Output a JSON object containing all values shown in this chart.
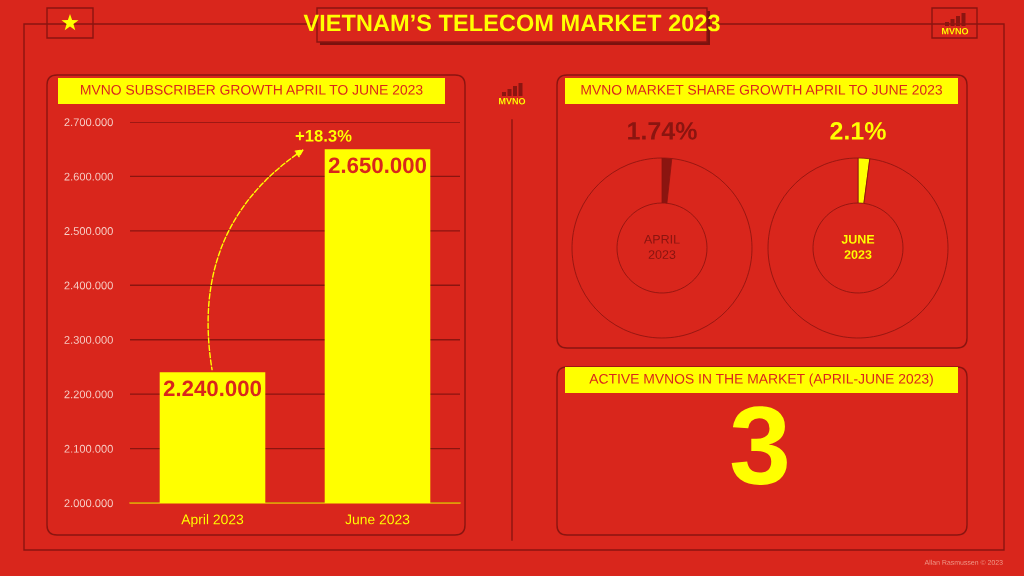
{
  "chart_data": [
    {
      "type": "other",
      "title": "VIETNAM’S TELECOM MARKET 2023",
      "annotations": [
        "MVNO",
        "MVNO",
        "Allan Rasmussen © 2023"
      ]
    },
    {
      "type": "bar",
      "title": "MVNO SUBSCRIBER GROWTH APRIL TO JUNE 2023",
      "categories": [
        "April 2023",
        "June 2023"
      ],
      "values": [
        2240000,
        2650000
      ],
      "value_labels": [
        "2.240.000",
        "2.650.000"
      ],
      "color": "#ffff00",
      "ylim": [
        2000000,
        2700000
      ],
      "yticks": [
        {
          "value": 2000000,
          "label": "2.000.000"
        },
        {
          "value": 2100000,
          "label": "2.100.000"
        },
        {
          "value": 2200000,
          "label": "2.200.000"
        },
        {
          "value": 2300000,
          "label": "2.300.000"
        },
        {
          "value": 2400000,
          "label": "2.400.000"
        },
        {
          "value": 2500000,
          "label": "2.500.000"
        },
        {
          "value": 2600000,
          "label": "2.600.000"
        },
        {
          "value": 2700000,
          "label": "2.700.000"
        }
      ],
      "grid": "y",
      "legend": false,
      "annotations": [
        "+18.3%"
      ]
    },
    {
      "type": "donut",
      "title": "MVNO MARKET SHARE GROWTH APRIL TO JUNE 2023",
      "categories": [
        null,
        null
      ],
      "values": [
        1.74,
        98.26
      ],
      "colors": [
        "#8b1510",
        "#d9261c"
      ],
      "value_labels": [
        "1.74%",
        null
      ],
      "annotations": [
        "APRIL\n2023"
      ],
      "legend": false
    },
    {
      "type": "donut",
      "categories": [
        null,
        null
      ],
      "values": [
        2.1,
        97.9
      ],
      "colors": [
        "#ffff00",
        "#d9261c"
      ],
      "value_labels": [
        "2.1%",
        null
      ],
      "annotations": [
        "JUNE\n2023"
      ],
      "legend": false
    },
    {
      "type": "other",
      "title": "ACTIVE MVNOS IN THE MARKET (APRIL-JUNE 2023)",
      "annotations": [
        "3"
      ]
    }
  ]
}
